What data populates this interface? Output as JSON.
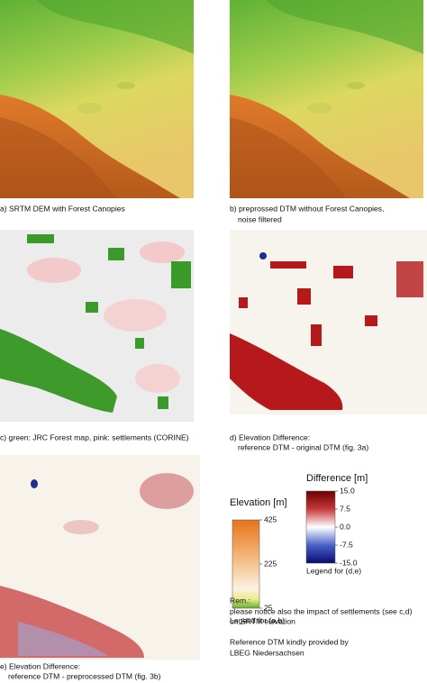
{
  "panels": [
    {
      "caption": [
        "a) SRTM DEM with Forest Canopies"
      ]
    },
    {
      "caption": [
        "b) preprossed DTM without Forest Canopies,",
        "noise filtered"
      ]
    },
    {
      "caption": [
        "c) green: JRC Forest map, pink: settlements (CORINE)"
      ]
    },
    {
      "caption": [
        "d) Elevation Difference:",
        "reference DTM - original DTM (fig. 3a)"
      ]
    },
    {
      "caption": [
        "e) Elevation Difference:",
        "reference DTM - preprocessed DTM (fig. 3b)"
      ]
    }
  ],
  "legends": [
    {
      "title": "Elevation [m]",
      "range": [
        25,
        425
      ],
      "ticks": [
        425,
        225,
        25
      ],
      "note": "Legend for (a,b)"
    },
    {
      "title": "Difference [m]",
      "range": [
        -15,
        15
      ],
      "ticks": [
        {
          "value": 15,
          "label": "15.0"
        },
        {
          "value": 7.5,
          "label": "7.5"
        },
        {
          "value": 0,
          "label": "0.0"
        },
        {
          "value": -7.5,
          "label": "-7.5"
        },
        {
          "value": -15,
          "label": "-15.0"
        }
      ],
      "note": "Legend for (d,e)"
    }
  ],
  "remarks": [
    "Rem.:",
    "please notice also the impact of settlements (see c,d)",
    "on SRTM elevation"
  ],
  "credit": [
    "Reference DTM kindly provided by",
    "LBEG Niedersachsen"
  ]
}
